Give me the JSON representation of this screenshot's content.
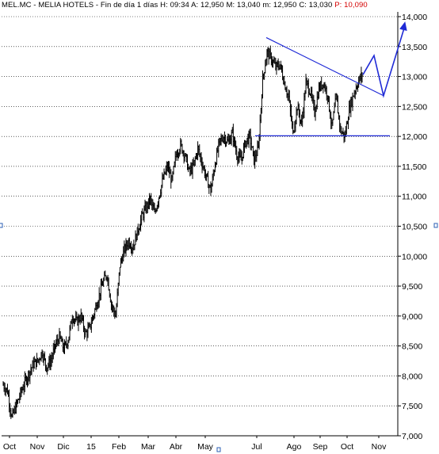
{
  "header": {
    "symbol": "MEL.MC",
    "name": "MELIA HOTELS",
    "period": "Fin de día 1 días",
    "time_label": "H:",
    "time": "09:34",
    "a_label": "A:",
    "a_value": "12,950",
    "m_label": "M:",
    "m_value": "13,040",
    "min_label": "m:",
    "min_value": "12,950",
    "c_label": "C:",
    "c_value": "13,030",
    "p_label": "P:",
    "p_value": "10,090"
  },
  "colors": {
    "price": "#000000",
    "trend_line": "#1f2ad6",
    "grid": "#000000",
    "background": "#ffffff",
    "highlight": "#d40000"
  },
  "chart_data": {
    "type": "bar",
    "subtype": "ohlc",
    "title": "",
    "xlabel": "",
    "ylabel": "",
    "ylim": [
      7000,
      14000
    ],
    "y_ticks": [
      "14,000",
      "13,500",
      "13,000",
      "12,500",
      "12,000",
      "11,500",
      "11,000",
      "10,500",
      "10,000",
      "9,500",
      "9,000",
      "8,500",
      "8,000",
      "7,500",
      "7,000"
    ],
    "x_ticks": [
      "Oct",
      "Nov",
      "Dic",
      "15",
      "Feb",
      "Mar",
      "Abr",
      "May",
      "Jul",
      "Ago",
      "Sep",
      "Oct",
      "Nov"
    ],
    "grid": "horizontal-dotted",
    "series": [
      {
        "values_approx_weekly_close": [
          7850,
          7750,
          7300,
          7500,
          7700,
          7900,
          8050,
          8200,
          8250,
          8400,
          8150,
          8250,
          8500,
          8650,
          8450,
          8600,
          9000,
          8900,
          9000,
          8700,
          8800,
          9050,
          9300,
          9550,
          9700,
          9200,
          9000,
          9850,
          10100,
          10250,
          10150,
          10400,
          10650,
          10800,
          10950,
          10700,
          11000,
          11300,
          11500,
          11250,
          11700,
          11850,
          11700,
          11400,
          11500,
          11800,
          11550,
          11300,
          11100,
          11550,
          11900,
          12000,
          11900,
          12050,
          11700,
          11600,
          11900,
          12000,
          11600,
          11800,
          12950,
          13400,
          13300,
          13150,
          13200,
          12900,
          12650,
          12050,
          12500,
          12200,
          12900,
          12750,
          12400,
          12800,
          12900,
          12700,
          12150,
          12650,
          12100,
          12000,
          12450,
          12700,
          12900,
          13030
        ]
      }
    ],
    "annotations": {
      "resistance_line": {
        "from_value": 13650,
        "to_value": 12680
      },
      "support_line": {
        "value": 12010
      },
      "projection": [
        13030,
        13350,
        12680,
        13850
      ]
    }
  }
}
